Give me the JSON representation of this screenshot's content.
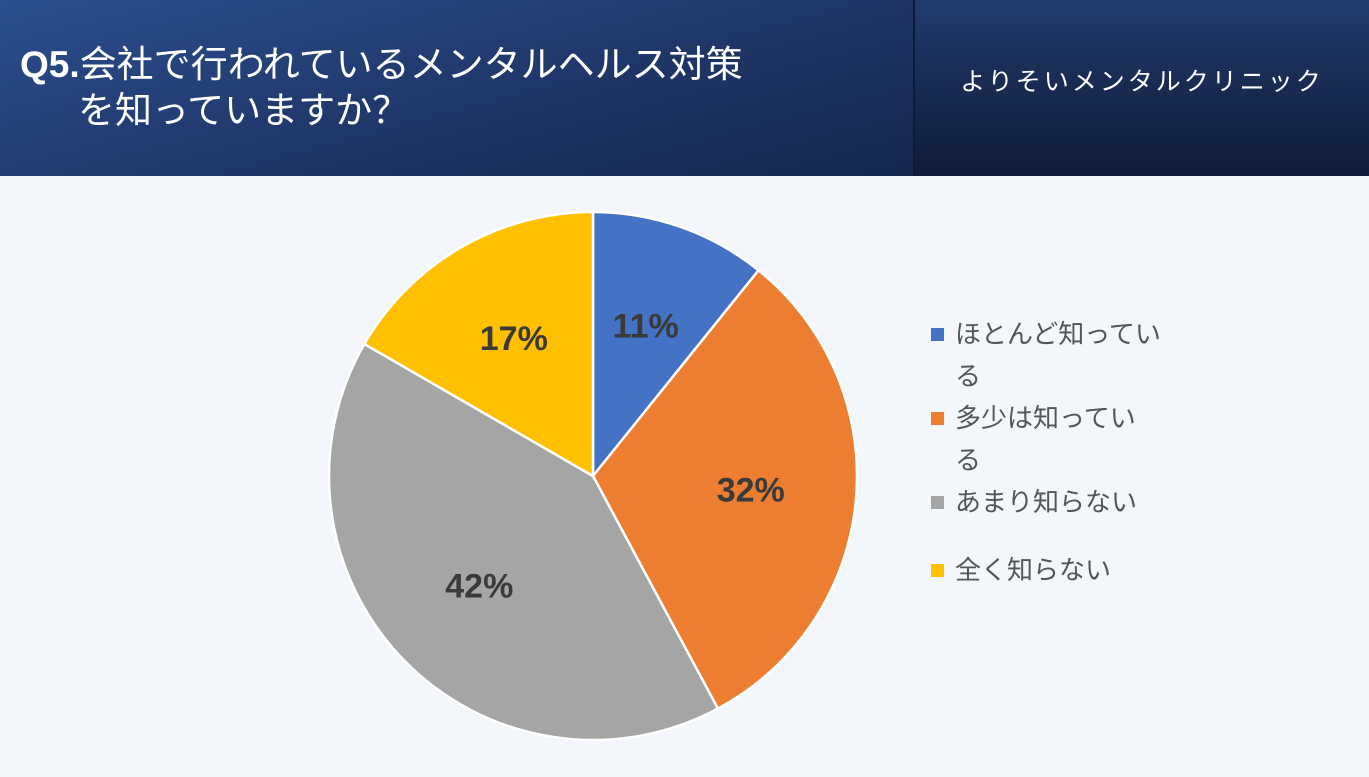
{
  "header": {
    "title_prefix": "Q5.",
    "title_line1": "会社で行われているメンタルヘルス対策",
    "title_line2": "を知っていますか？",
    "brand": "よりそいメンタルクリニック"
  },
  "chart_data": {
    "type": "pie",
    "title": "",
    "slices": [
      {
        "name": "ほとんど知っている",
        "value": 11,
        "label": "11%",
        "color": "#4472c4"
      },
      {
        "name": "多少は知っている",
        "value": 32,
        "label": "32%",
        "color": "#ed7d31"
      },
      {
        "name": "あまり知らない",
        "value": 42,
        "label": "42%",
        "color": "#a5a5a5"
      },
      {
        "name": "全く知らない",
        "value": 17,
        "label": "17%",
        "color": "#ffc000"
      }
    ],
    "legend_position": "right",
    "start_angle": "12 o'clock",
    "direction": "clockwise"
  }
}
